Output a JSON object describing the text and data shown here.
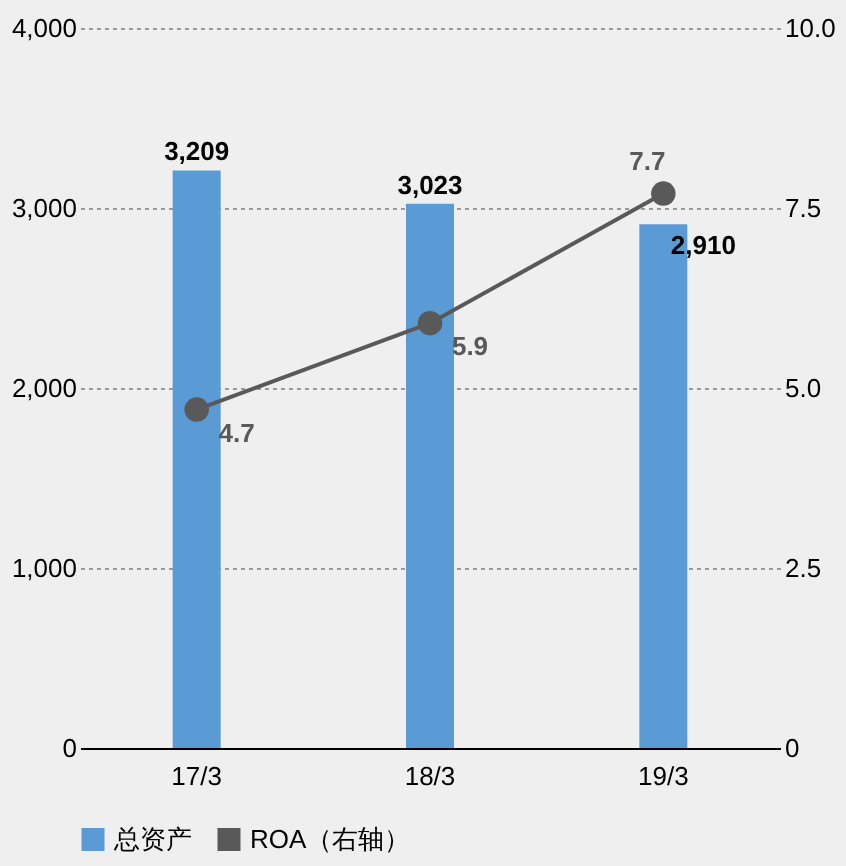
{
  "chart_data": {
    "type": "bar",
    "categories": [
      "17/3",
      "18/3",
      "19/3"
    ],
    "series": [
      {
        "name": "总资产",
        "color": "#5b9bd5",
        "values": [
          3209,
          3023,
          2910
        ],
        "value_labels": [
          "3,209",
          "3,023",
          "2,910"
        ]
      },
      {
        "name": "ROA（右轴）",
        "type": "line",
        "axis": "y2",
        "color": "#595959",
        "marker": "circle",
        "values": [
          4.7,
          5.9,
          7.7
        ],
        "value_labels": [
          "4.7",
          "5.9",
          "7.7"
        ]
      }
    ],
    "ylim": [
      0,
      4000
    ],
    "yticks": [
      0,
      {
        "value": 1000,
        "label": "1,000"
      },
      {
        "value": 2000,
        "label": "2,000"
      },
      {
        "value": 3000,
        "label": "3,000"
      },
      {
        "value": 4000,
        "label": "4,000"
      }
    ],
    "y2lim": [
      0,
      10
    ],
    "y2ticks": [
      0,
      2.5,
      {
        "value": 5,
        "label": "5.0"
      },
      7.5,
      {
        "value": 10,
        "label": "10.0"
      }
    ],
    "grid": "y",
    "legend": "bottom left"
  }
}
